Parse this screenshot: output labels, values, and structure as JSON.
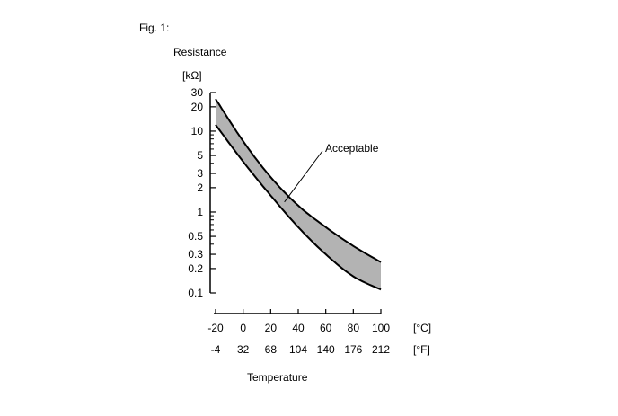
{
  "chart_data": {
    "type": "area",
    "figure_label": "Fig. 1:",
    "title": "",
    "ylabel": "Resistance",
    "yunit": "[kΩ]",
    "yscale": "log",
    "ylim": [
      0.1,
      30
    ],
    "yticks": [
      {
        "value": 30,
        "label": "30"
      },
      {
        "value": 20,
        "label": "20"
      },
      {
        "value": 10,
        "label": "10"
      },
      {
        "value": 5,
        "label": "5"
      },
      {
        "value": 3,
        "label": "3"
      },
      {
        "value": 2,
        "label": "2"
      },
      {
        "value": 1,
        "label": "1"
      },
      {
        "value": 0.5,
        "label": "0.5"
      },
      {
        "value": 0.3,
        "label": "0.3"
      },
      {
        "value": 0.2,
        "label": "0.2"
      },
      {
        "value": 0.1,
        "label": "0.1"
      }
    ],
    "yminor": [
      0.4,
      0.6,
      0.7,
      0.8,
      0.9,
      4,
      6,
      7,
      8,
      9
    ],
    "xlabel": "Temperature",
    "xlim": [
      -20,
      100
    ],
    "xticks_c": [
      -20,
      0,
      20,
      40,
      60,
      80,
      100
    ],
    "xticks_f": [
      -4,
      32,
      68,
      104,
      140,
      176,
      212
    ],
    "xunit_c": "[°C]",
    "xunit_f": "[°F]",
    "series": [
      {
        "name": "upper",
        "x": [
          -20,
          0,
          20,
          40,
          60,
          80,
          100
        ],
        "values": [
          25,
          7.5,
          2.7,
          1.2,
          0.65,
          0.38,
          0.24
        ]
      },
      {
        "name": "lower",
        "x": [
          -20,
          0,
          20,
          40,
          60,
          80,
          100
        ],
        "values": [
          12,
          4.2,
          1.6,
          0.65,
          0.3,
          0.16,
          0.11
        ]
      }
    ],
    "band_label": "Acceptable",
    "band_label_x": 30,
    "band_fill": "#b3b3b3"
  }
}
